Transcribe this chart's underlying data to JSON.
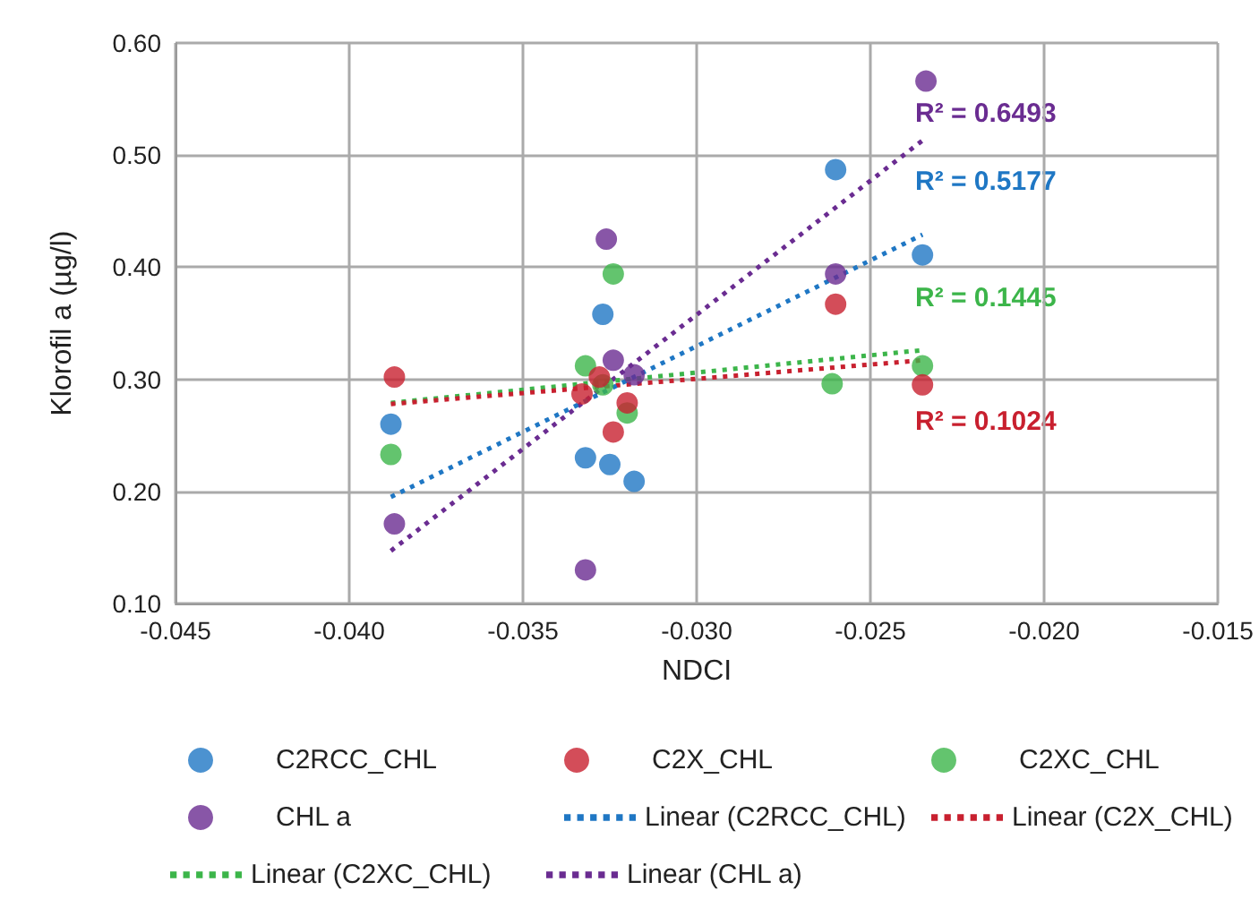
{
  "chart_data": {
    "type": "scatter",
    "xlabel": "NDCI",
    "ylabel": "Klorofil a (µg/l)",
    "xlim": [
      -0.045,
      -0.015
    ],
    "xticks": [
      {
        "value": -0.045,
        "label": "-0.045"
      },
      {
        "value": -0.04,
        "label": "-0.040"
      },
      {
        "value": -0.035,
        "label": "-0.035"
      },
      {
        "value": -0.03,
        "label": "-0.030"
      },
      {
        "value": -0.025,
        "label": "-0.025"
      },
      {
        "value": -0.02,
        "label": "-0.020"
      },
      {
        "value": -0.015,
        "label": "-0.015"
      }
    ],
    "ylim": [
      0.1,
      0.6
    ],
    "yticks": [
      {
        "value": 0.1,
        "label": "0.10"
      },
      {
        "value": 0.2,
        "label": "0.20"
      },
      {
        "value": 0.3,
        "label": "0.30"
      },
      {
        "value": 0.4,
        "label": "0.40"
      },
      {
        "value": 0.5,
        "label": "0.50"
      },
      {
        "value": 0.6,
        "label": "0.60"
      }
    ],
    "grid": true,
    "legend": "bottom",
    "marker": "circle",
    "series": [
      {
        "name": "C2RCC_CHL",
        "color": "#1f77c4",
        "x": [
          -0.0388,
          -0.0327,
          -0.0332,
          -0.0325,
          -0.0318,
          -0.026,
          -0.0235
        ],
        "values": [
          0.26,
          0.358,
          0.23,
          0.224,
          0.209,
          0.487,
          0.411
        ]
      },
      {
        "name": "C2X_CHL",
        "color": "#c8202f",
        "x": [
          -0.0387,
          -0.0328,
          -0.0333,
          -0.032,
          -0.0324,
          -0.026,
          -0.0235
        ],
        "values": [
          0.302,
          0.302,
          0.287,
          0.279,
          0.253,
          0.367,
          0.295
        ]
      },
      {
        "name": "C2XC_CHL",
        "color": "#3cb54a",
        "x": [
          -0.0388,
          -0.0332,
          -0.0324,
          -0.0327,
          -0.032,
          -0.0261,
          -0.0235
        ],
        "values": [
          0.233,
          0.312,
          0.394,
          0.295,
          0.27,
          0.296,
          0.312
        ]
      },
      {
        "name": "CHL a",
        "color": "#6a2c91",
        "x": [
          -0.0387,
          -0.0326,
          -0.0324,
          -0.0318,
          -0.0332,
          -0.0234,
          -0.026
        ],
        "values": [
          0.171,
          0.425,
          0.317,
          0.304,
          0.13,
          0.566,
          0.394
        ]
      },
      {
        "name": "Linear (C2RCC_CHL)",
        "type": "line",
        "color": "#1f77c4",
        "line_style": "dotted",
        "marker": "none",
        "x": [
          -0.0388,
          -0.0235
        ],
        "values": [
          0.195,
          0.429
        ]
      },
      {
        "name": "Linear (C2X_CHL)",
        "type": "line",
        "color": "#c8202f",
        "line_style": "dotted",
        "marker": "none",
        "x": [
          -0.0388,
          -0.0235
        ],
        "values": [
          0.278,
          0.317
        ]
      },
      {
        "name": "Linear (C2XC_CHL)",
        "type": "line",
        "color": "#3cb54a",
        "line_style": "dotted",
        "marker": "none",
        "x": [
          -0.0388,
          -0.0235
        ],
        "values": [
          0.279,
          0.326
        ]
      },
      {
        "name": "Linear (CHL a)",
        "type": "line",
        "color": "#6a2c91",
        "line_style": "dotted",
        "marker": "none",
        "x": [
          -0.0388,
          -0.0235
        ],
        "values": [
          0.147,
          0.513
        ]
      }
    ],
    "annotations": [
      "R² = 0.6493",
      "R² = 0.5177",
      "R² = 0.1445",
      "R² = 0.1024"
    ]
  }
}
